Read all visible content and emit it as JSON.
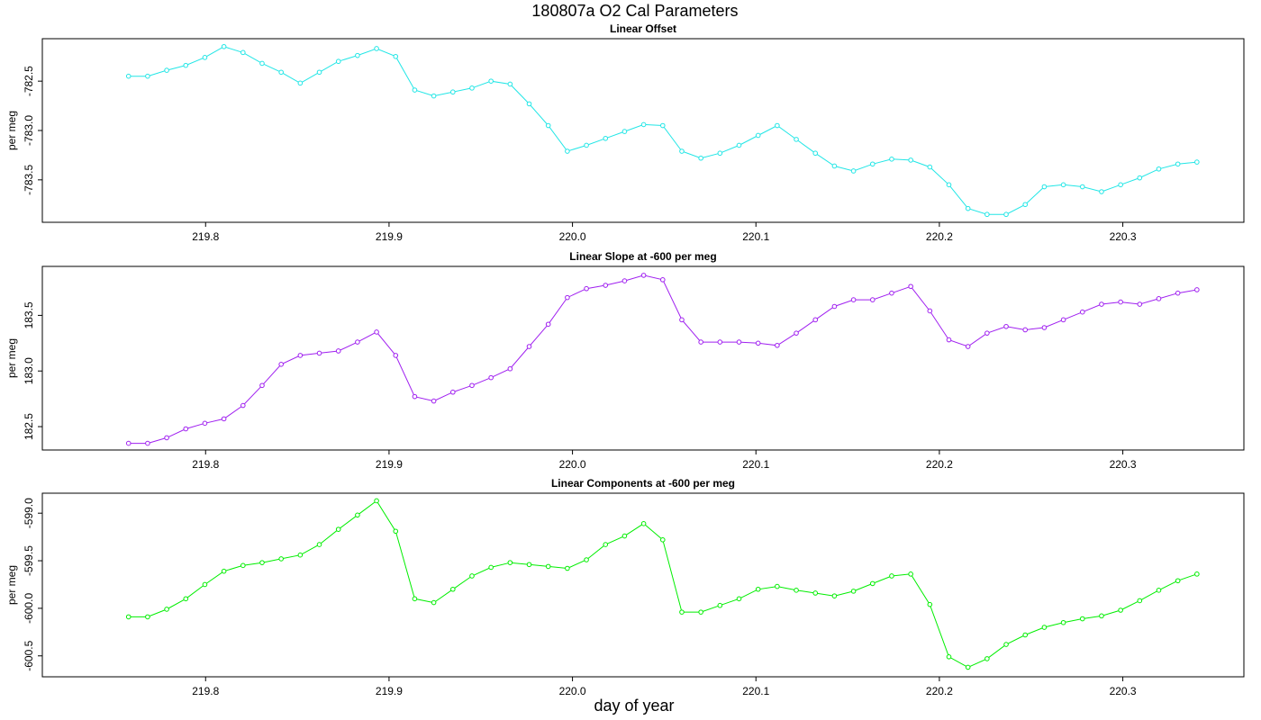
{
  "title": "180807a   O2 Cal Parameters",
  "xlabel": "day of year",
  "chart_data": [
    {
      "type": "line",
      "title": "Linear Offset",
      "ylabel": "per meg",
      "xlim": [
        219.711,
        220.366
      ],
      "ylim": [
        -783.93,
        -782.07
      ],
      "xticks": [
        219.8,
        219.9,
        {
          "value": 220,
          "label": "220.0"
        },
        220.1,
        220.2,
        220.3
      ],
      "yticks": [
        -782.5,
        {
          "value": -783,
          "label": "-783.0"
        },
        -783.5
      ],
      "x": [
        219.758,
        219.7684,
        219.7788,
        219.7892,
        219.7996,
        219.81,
        219.8204,
        219.8308,
        219.8412,
        219.8516,
        219.862,
        219.8724,
        219.8828,
        219.8932,
        219.9036,
        219.914,
        219.9244,
        219.9348,
        219.9452,
        219.9556,
        219.966,
        219.9764,
        219.9868,
        219.9972,
        220.0076,
        220.018,
        220.0284,
        220.0388,
        220.0492,
        220.0596,
        220.07,
        220.0804,
        220.0908,
        220.1012,
        220.1116,
        220.122,
        220.1324,
        220.1428,
        220.1532,
        220.1636,
        220.174,
        220.1844,
        220.1948,
        220.2052,
        220.2156,
        220.226,
        220.2364,
        220.2468,
        220.2572,
        220.2676,
        220.278,
        220.2884,
        220.2988,
        220.3092,
        220.3196,
        220.33,
        220.3404
      ],
      "series": [
        {
          "color": "#22e6e6",
          "values": [
            -782.45,
            -782.45,
            -782.39,
            -782.34,
            -782.26,
            -782.15,
            -782.21,
            -782.32,
            -782.41,
            -782.52,
            -782.41,
            -782.3,
            -782.24,
            -782.17,
            -782.25,
            -782.59,
            -782.65,
            -782.61,
            -782.57,
            -782.5,
            -782.53,
            -782.73,
            -782.95,
            -783.21,
            -783.15,
            -783.08,
            -783.01,
            -782.94,
            -782.95,
            -783.21,
            -783.28,
            -783.23,
            -783.15,
            -783.05,
            -782.95,
            -783.09,
            -783.23,
            -783.36,
            -783.41,
            -783.34,
            -783.29,
            -783.3,
            -783.37,
            -783.55,
            -783.79,
            -783.85,
            -783.85,
            -783.75,
            -783.57,
            -783.55,
            -783.57,
            -783.62,
            -783.55,
            -783.48,
            -783.39,
            -783.34,
            -783.32
          ]
        }
      ]
    },
    {
      "type": "line",
      "title": "Linear Slope at -600 per meg",
      "ylabel": "per meg",
      "xlim": [
        219.711,
        220.366
      ],
      "ylim": [
        182.29,
        183.94
      ],
      "xticks": [
        219.8,
        219.9,
        {
          "value": 220,
          "label": "220.0"
        },
        220.1,
        220.2,
        220.3
      ],
      "yticks": [
        182.5,
        {
          "value": 183,
          "label": "183.0"
        },
        183.5
      ],
      "x": [
        219.758,
        219.7684,
        219.7788,
        219.7892,
        219.7996,
        219.81,
        219.8204,
        219.8308,
        219.8412,
        219.8516,
        219.862,
        219.8724,
        219.8828,
        219.8932,
        219.9036,
        219.914,
        219.9244,
        219.9348,
        219.9452,
        219.9556,
        219.966,
        219.9764,
        219.9868,
        219.9972,
        220.0076,
        220.018,
        220.0284,
        220.0388,
        220.0492,
        220.0596,
        220.07,
        220.0804,
        220.0908,
        220.1012,
        220.1116,
        220.122,
        220.1324,
        220.1428,
        220.1532,
        220.1636,
        220.174,
        220.1844,
        220.1948,
        220.2052,
        220.2156,
        220.226,
        220.2364,
        220.2468,
        220.2572,
        220.2676,
        220.278,
        220.2884,
        220.2988,
        220.3092,
        220.3196,
        220.33,
        220.3404
      ],
      "series": [
        {
          "color": "#a020f0",
          "values": [
            182.35,
            182.35,
            182.4,
            182.48,
            182.53,
            182.57,
            182.69,
            182.87,
            183.06,
            183.14,
            183.16,
            183.18,
            183.26,
            183.35,
            183.14,
            182.77,
            182.73,
            182.81,
            182.87,
            182.94,
            183.02,
            183.22,
            183.42,
            183.66,
            183.74,
            183.77,
            183.81,
            183.86,
            183.82,
            183.46,
            183.26,
            183.26,
            183.26,
            183.25,
            183.23,
            183.34,
            183.46,
            183.58,
            183.64,
            183.64,
            183.7,
            183.76,
            183.54,
            183.28,
            183.22,
            183.34,
            183.4,
            183.37,
            183.39,
            183.46,
            183.53,
            183.6,
            183.62,
            183.6,
            183.65,
            183.7,
            183.73
          ]
        }
      ]
    },
    {
      "type": "line",
      "title": "Linear Components at -600 per meg",
      "ylabel": "per meg",
      "xlim": [
        219.711,
        220.366
      ],
      "ylim": [
        -600.72,
        -598.79
      ],
      "xticks": [
        219.8,
        219.9,
        {
          "value": 220,
          "label": "220.0"
        },
        220.1,
        220.2,
        220.3
      ],
      "yticks": [
        {
          "value": -599,
          "label": "-599.0"
        },
        -599.5,
        {
          "value": -600,
          "label": "-600.0"
        },
        -600.5
      ],
      "x": [
        219.758,
        219.7684,
        219.7788,
        219.7892,
        219.7996,
        219.81,
        219.8204,
        219.8308,
        219.8412,
        219.8516,
        219.862,
        219.8724,
        219.8828,
        219.8932,
        219.9036,
        219.914,
        219.9244,
        219.9348,
        219.9452,
        219.9556,
        219.966,
        219.9764,
        219.9868,
        219.9972,
        220.0076,
        220.018,
        220.0284,
        220.0388,
        220.0492,
        220.0596,
        220.07,
        220.0804,
        220.0908,
        220.1012,
        220.1116,
        220.122,
        220.1324,
        220.1428,
        220.1532,
        220.1636,
        220.174,
        220.1844,
        220.1948,
        220.2052,
        220.2156,
        220.226,
        220.2364,
        220.2468,
        220.2572,
        220.2676,
        220.278,
        220.2884,
        220.2988,
        220.3092,
        220.3196,
        220.33,
        220.3404
      ],
      "series": [
        {
          "color": "#00ee00",
          "values": [
            -600.09,
            -600.09,
            -600.01,
            -599.9,
            -599.75,
            -599.61,
            -599.55,
            -599.52,
            -599.48,
            -599.44,
            -599.33,
            -599.17,
            -599.02,
            -598.87,
            -599.19,
            -599.9,
            -599.94,
            -599.8,
            -599.66,
            -599.57,
            -599.52,
            -599.54,
            -599.56,
            -599.58,
            -599.49,
            -599.33,
            -599.24,
            -599.11,
            -599.28,
            -600.04,
            -600.04,
            -599.97,
            -599.9,
            -599.8,
            -599.77,
            -599.81,
            -599.84,
            -599.87,
            -599.82,
            -599.74,
            -599.66,
            -599.64,
            -599.96,
            -600.51,
            -600.62,
            -600.53,
            -600.38,
            -600.28,
            -600.2,
            -600.15,
            -600.11,
            -600.08,
            -600.02,
            -599.92,
            -599.81,
            -599.71,
            -599.64
          ]
        }
      ]
    }
  ]
}
